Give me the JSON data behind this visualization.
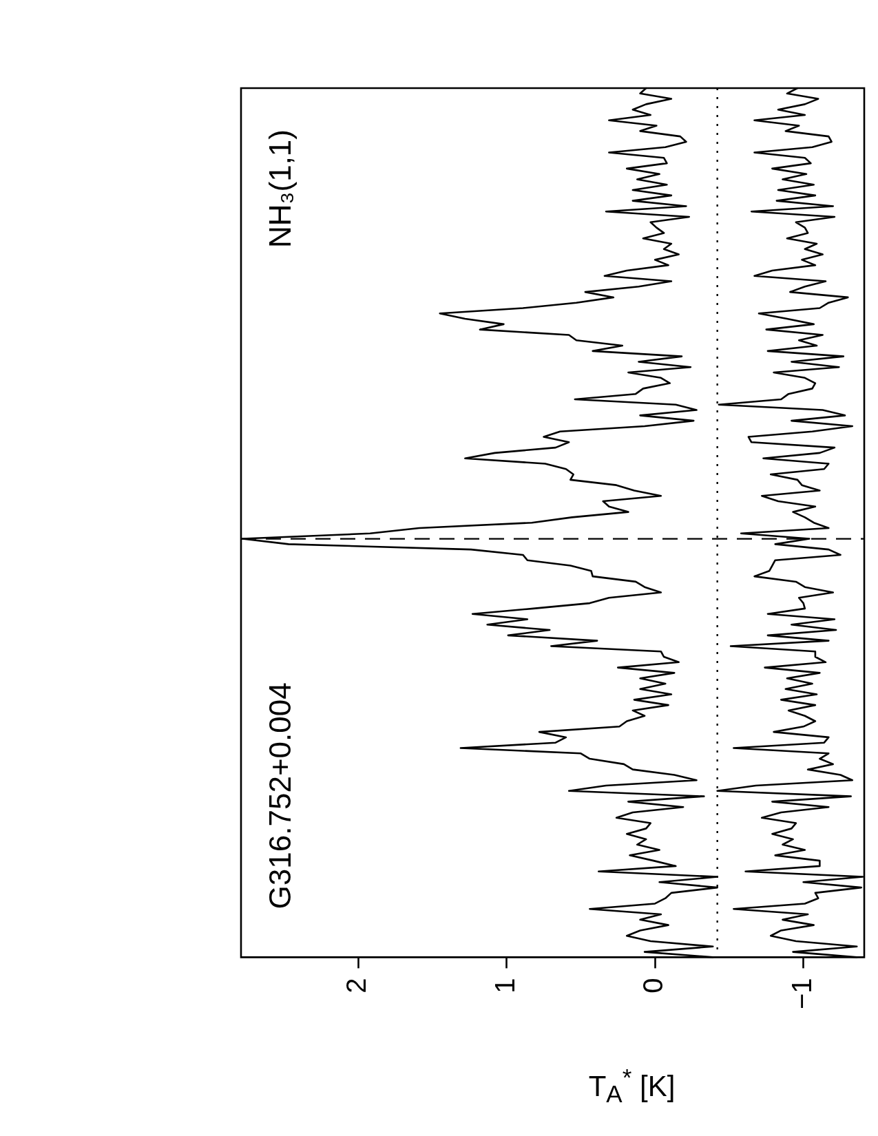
{
  "chart_data": {
    "type": "line",
    "orientation": "horizontal",
    "xlabel": "T$_{A}$$^{*}$ [K]",
    "annotations": [
      "G316.752+0.004",
      "NH₃(1,1)"
    ],
    "categories": [
      null,
      null,
      null,
      null,
      null,
      null,
      null,
      null,
      null,
      null,
      null,
      null,
      null,
      null,
      null,
      null,
      null,
      null,
      null,
      null,
      null,
      null,
      null,
      null,
      null,
      null,
      null,
      null,
      null,
      null,
      null,
      null,
      null,
      null,
      null,
      null,
      null,
      null,
      null,
      null,
      null,
      null,
      null,
      null,
      null,
      null,
      null,
      null,
      null,
      null,
      null,
      null,
      null,
      null,
      null,
      null,
      null,
      null,
      null,
      null,
      null,
      null,
      null,
      null,
      null,
      null,
      null,
      null,
      null,
      null,
      null,
      null,
      null,
      null,
      null,
      null,
      null,
      null,
      null,
      null,
      null,
      null,
      null,
      null,
      null,
      null,
      null,
      null,
      null,
      null,
      null,
      null,
      null,
      null,
      null,
      null,
      null,
      null,
      null,
      null,
      null,
      null,
      null,
      null,
      null,
      null,
      null,
      null,
      null,
      null,
      null,
      null,
      null,
      null,
      null,
      null,
      null,
      null,
      null,
      null,
      null,
      null,
      null,
      null,
      null,
      null,
      null,
      null,
      null,
      null,
      null,
      null,
      null,
      null,
      null,
      null,
      null,
      null,
      null,
      null,
      null,
      null,
      null,
      null,
      null,
      null,
      null,
      null,
      null,
      null,
      null,
      null,
      null,
      null,
      null,
      null,
      null,
      null,
      null,
      null,
      null,
      null,
      null
    ],
    "xlim": [
      2.79,
      -1.41
    ],
    "xticks": [
      2,
      1,
      0,
      {
        "value": -1,
        "label": "−1"
      }
    ],
    "tick_labels": "x",
    "grid": false,
    "legend": false,
    "marker": "none",
    "ref_lines": [
      {
        "axis": "x",
        "value": -0.42,
        "line_style": "dotted",
        "color": "#000000"
      }
    ],
    "series": [
      {
        "color": "#000000",
        "values": [
          0.06,
          0.1,
          -0.11,
          0.06,
          0.15,
          0.03,
          0.31,
          -0.01,
          0.1,
          -0.17,
          -0.21,
          -0.07,
          0.31,
          -0.06,
          -0.08,
          0.19,
          -0.03,
          0.12,
          -0.08,
          0.15,
          -0.11,
          0.15,
          -0.21,
          0.33,
          -0.23,
          0.03,
          -0.01,
          -0.06,
          0.08,
          -0.11,
          -0.06,
          -0.16,
          0.0,
          -0.09,
          0.19,
          0.34,
          -0.11,
          0.11,
          0.47,
          0.28,
          0.53,
          0.89,
          1.45,
          1.28,
          1.02,
          1.18,
          0.58,
          0.53,
          0.22,
          0.42,
          -0.18,
          0.11,
          -0.24,
          0.18,
          -0.04,
          -0.1,
          0.08,
          0.13,
          0.54,
          -0.14,
          -0.28,
          0.1,
          -0.26,
          0.07,
          0.64,
          0.75,
          0.58,
          0.67,
          1.08,
          1.28,
          0.74,
          0.6,
          0.55,
          0.57,
          0.26,
          0.14,
          -0.04,
          0.35,
          0.31,
          0.18,
          0.56,
          0.83,
          1.59,
          1.92,
          2.78,
          2.47,
          1.24,
          0.89,
          0.86,
          0.57,
          0.43,
          0.42,
          0.13,
          0.07,
          -0.04,
          0.31,
          0.44,
          0.82,
          1.23,
          0.86,
          1.13,
          0.71,
          0.99,
          0.39,
          0.7,
          -0.04,
          -0.06,
          -0.16,
          0.25,
          -0.13,
          0.1,
          -0.07,
          0.1,
          -0.11,
          0.14,
          -0.09,
          0.15,
          0.07,
          0.19,
          0.24,
          0.78,
          0.6,
          0.67,
          1.31,
          0.5,
          0.44,
          0.21,
          0.15,
          -0.13,
          -0.28,
          0.33,
          0.58,
          -0.33,
          0.18,
          -0.19,
          0.15,
          0.26,
          0.03,
          0.06,
          0.19,
          0.06,
          0.12,
          -0.03,
          0.17,
          0.01,
          -0.14,
          0.38,
          -0.42,
          -0.03,
          -0.42,
          -0.11,
          -0.07,
          0.0,
          0.44,
          -0.04,
          0.1,
          -0.09,
          0.1,
          0.19,
          0.03,
          -0.39,
          0.07,
          -0.39
        ]
      },
      {
        "color": "#000000",
        "values": [
          -0.96,
          -0.89,
          -1.1,
          -1.01,
          -0.83,
          -1.01,
          -0.67,
          -0.97,
          -0.88,
          -1.17,
          -1.19,
          -1.06,
          -0.67,
          -1.01,
          -1.05,
          -0.79,
          -1.02,
          -0.86,
          -1.07,
          -0.83,
          -1.08,
          -0.82,
          -1.2,
          -0.65,
          -1.21,
          -0.95,
          -1.01,
          -1.03,
          -0.89,
          -1.09,
          -1.01,
          -1.13,
          -0.99,
          -1.08,
          -0.79,
          -0.67,
          -1.15,
          -1.01,
          -0.91,
          -1.3,
          -1.17,
          -1.11,
          -0.7,
          -0.89,
          -1.07,
          -0.75,
          -1.13,
          -0.97,
          -1.09,
          -0.76,
          -1.27,
          -0.92,
          -1.24,
          -0.8,
          -1.01,
          -1.08,
          -1.06,
          -0.9,
          -0.85,
          -0.43,
          -1.13,
          -1.28,
          -0.92,
          -1.33,
          -1.06,
          -0.63,
          -0.65,
          -1.21,
          -1.11,
          -0.73,
          -1.17,
          -1.14,
          -0.78,
          -0.96,
          -0.99,
          -1.11,
          -0.72,
          -0.83,
          -1.08,
          -0.93,
          -1.01,
          -1.07,
          -1.17,
          -0.58,
          -1.04,
          -0.81,
          -1.17,
          -1.25,
          -0.81,
          -0.79,
          -0.77,
          -0.67,
          -0.95,
          -1.01,
          -1.2,
          -0.97,
          -1.0,
          -1.01,
          -0.76,
          -1.21,
          -0.92,
          -1.22,
          -0.76,
          -1.17,
          -0.51,
          -1.08,
          -1.08,
          -1.15,
          -0.74,
          -1.11,
          -0.89,
          -1.06,
          -0.88,
          -1.09,
          -0.85,
          -1.08,
          -0.9,
          -1.01,
          -1.08,
          -1.0,
          -0.8,
          -1.17,
          -1.14,
          -0.53,
          -1.17,
          -1.11,
          -1.2,
          -1.03,
          -1.25,
          -1.33,
          -0.68,
          -0.42,
          -1.32,
          -0.79,
          -1.17,
          -0.85,
          -0.72,
          -0.95,
          -0.92,
          -0.79,
          -0.93,
          -0.86,
          -1.01,
          -0.81,
          -1.11,
          -1.11,
          -0.61,
          -1.4,
          -1.0,
          -1.39,
          -1.08,
          -1.1,
          -1.01,
          -0.53,
          -1.03,
          -0.86,
          -1.07,
          -0.85,
          -0.78,
          -0.95,
          -1.36,
          -0.93,
          -1.36
        ]
      }
    ]
  }
}
